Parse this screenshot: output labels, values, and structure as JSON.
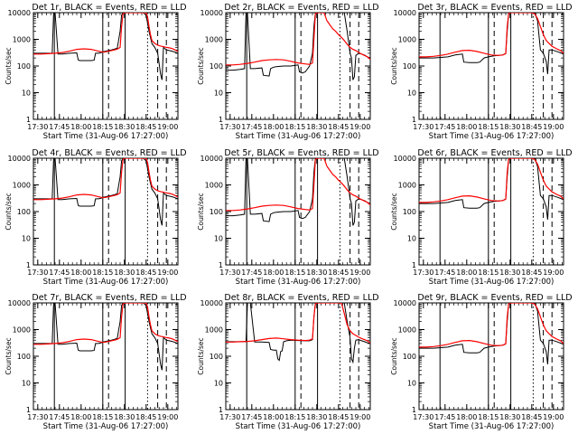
{
  "chart_data": [
    {
      "type": "line",
      "title": "Det 1r, BLACK = Events, RED = LLD",
      "profile": "a"
    },
    {
      "type": "line",
      "title": "Det 2r, BLACK = Events, RED = LLD",
      "profile": "b"
    },
    {
      "type": "line",
      "title": "Det 3r, BLACK = Events, RED = LLD",
      "profile": "c"
    },
    {
      "type": "line",
      "title": "Det 4r, BLACK = Events, RED = LLD",
      "profile": "a"
    },
    {
      "type": "line",
      "title": "Det 5r, BLACK = Events, RED = LLD",
      "profile": "b"
    },
    {
      "type": "line",
      "title": "Det 6r, BLACK = Events, RED = LLD",
      "profile": "c"
    },
    {
      "type": "line",
      "title": "Det 7r, BLACK = Events, RED = LLD",
      "profile": "a"
    },
    {
      "type": "line",
      "title": "Det 8r, BLACK = Events, RED = LLD",
      "profile": "d"
    },
    {
      "type": "line",
      "title": "Det 9r, BLACK = Events, RED = LLD",
      "profile": "c"
    }
  ],
  "shared": {
    "xlabel": "Start Time (31-Aug-06 17:27:00)",
    "ylabel": "Counts/sec",
    "x_ticks": [
      "17:30",
      "17:45",
      "18:00",
      "18:15",
      "18:30",
      "18:45",
      "19:00"
    ],
    "x_tick_minutes": [
      3,
      18,
      33,
      48,
      63,
      78,
      93
    ],
    "xlim_minutes": [
      0,
      100
    ],
    "y_scale": "log",
    "ylim": [
      1,
      10000
    ],
    "y_ticks": [
      "1",
      "10",
      "100",
      "1000",
      "10000"
    ],
    "y_tick_values": [
      1,
      10,
      100,
      1000,
      10000
    ],
    "colors": {
      "events": "#000000",
      "lld": "#ff0000"
    }
  },
  "profiles": {
    "a": {
      "events_minutes": [
        0,
        5,
        10,
        13,
        14,
        15,
        17,
        20,
        25,
        30,
        31,
        32,
        35,
        40,
        42,
        43,
        45,
        47,
        48,
        49,
        50,
        51,
        52,
        54,
        56,
        58,
        60,
        61,
        62,
        63,
        64,
        66,
        68,
        70,
        72,
        74,
        76,
        78,
        80,
        82,
        84,
        86,
        88,
        89,
        90,
        92,
        94,
        96,
        98,
        100
      ],
      "events_counts": [
        300,
        300,
        300,
        300,
        10000,
        10000,
        280,
        280,
        300,
        310,
        170,
        160,
        160,
        160,
        165,
        300,
        300,
        320,
        340,
        350,
        360,
        370,
        380,
        400,
        430,
        460,
        2000,
        8000,
        10000,
        10000,
        10000,
        10000,
        10000,
        10000,
        10000,
        10000,
        10000,
        8000,
        2000,
        700,
        500,
        300,
        50,
        30,
        500,
        400,
        380,
        360,
        330,
        300
      ],
      "lld_minutes": [
        0,
        5,
        10,
        15,
        20,
        25,
        30,
        35,
        40,
        45,
        48,
        50,
        52,
        54,
        56,
        58,
        60,
        61,
        62,
        63,
        66,
        70,
        74,
        78,
        79,
        80,
        81,
        82,
        84,
        86,
        88,
        90,
        92,
        94,
        96,
        98,
        100
      ],
      "lld_counts": [
        280,
        280,
        290,
        300,
        320,
        360,
        420,
        440,
        420,
        360,
        330,
        340,
        360,
        380,
        400,
        430,
        500,
        3000,
        9000,
        10000,
        10000,
        10000,
        10000,
        10000,
        7000,
        3000,
        1500,
        900,
        700,
        600,
        560,
        530,
        500,
        480,
        450,
        400,
        350
      ]
    },
    "b": {
      "events_minutes": [
        0,
        5,
        10,
        13,
        14,
        15,
        17,
        20,
        25,
        26,
        30,
        31,
        33,
        35,
        40,
        45,
        50,
        51,
        53,
        55,
        58,
        60,
        61,
        62,
        64,
        66,
        70,
        74,
        78,
        80,
        82,
        84,
        86,
        87,
        88,
        89,
        90,
        92,
        94,
        96,
        98,
        100
      ],
      "events_counts": [
        70,
        70,
        75,
        80,
        10000,
        10000,
        80,
        80,
        85,
        45,
        42,
        80,
        90,
        95,
        100,
        100,
        110,
        60,
        55,
        60,
        100,
        300,
        3000,
        10000,
        10000,
        10000,
        10000,
        10000,
        10000,
        10000,
        10000,
        2000,
        300,
        200,
        30,
        40,
        250,
        300,
        280,
        260,
        220,
        200
      ],
      "lld_minutes": [
        0,
        5,
        10,
        15,
        20,
        25,
        30,
        35,
        40,
        45,
        50,
        55,
        58,
        60,
        61,
        62,
        63,
        64,
        66,
        68,
        70,
        72,
        74,
        76,
        78,
        80,
        82,
        84,
        86,
        88,
        90,
        92,
        94,
        96,
        98,
        100
      ],
      "lld_counts": [
        110,
        110,
        115,
        125,
        140,
        160,
        170,
        175,
        170,
        150,
        130,
        120,
        115,
        130,
        1000,
        9000,
        10000,
        10000,
        10000,
        10000,
        5000,
        3500,
        2500,
        2000,
        1500,
        1200,
        900,
        650,
        500,
        420,
        380,
        320,
        280,
        250,
        220,
        180
      ]
    },
    "c": {
      "events_minutes": [
        0,
        5,
        10,
        15,
        20,
        25,
        30,
        31,
        35,
        40,
        42,
        45,
        48,
        50,
        52,
        55,
        58,
        60,
        61,
        62,
        63,
        64,
        66,
        70,
        74,
        78,
        80,
        82,
        84,
        86,
        88,
        89,
        90,
        92,
        94,
        96,
        98,
        100
      ],
      "events_counts": [
        200,
        200,
        200,
        210,
        220,
        260,
        280,
        140,
        135,
        135,
        140,
        200,
        220,
        230,
        240,
        250,
        260,
        300,
        2000,
        9000,
        10000,
        10000,
        10000,
        10000,
        10000,
        10000,
        10000,
        5000,
        400,
        300,
        150,
        50,
        400,
        400,
        370,
        340,
        310,
        280
      ],
      "lld_minutes": [
        0,
        5,
        10,
        15,
        20,
        25,
        30,
        35,
        40,
        45,
        50,
        55,
        58,
        60,
        61,
        62,
        63,
        66,
        70,
        74,
        78,
        80,
        82,
        84,
        86,
        88,
        90,
        92,
        94,
        96,
        98,
        100
      ],
      "lld_counts": [
        220,
        220,
        230,
        250,
        280,
        330,
        380,
        390,
        350,
        300,
        260,
        250,
        260,
        290,
        3000,
        9000,
        10000,
        10000,
        10000,
        10000,
        10000,
        9000,
        6000,
        3000,
        1500,
        900,
        700,
        550,
        480,
        420,
        380,
        300
      ]
    },
    "d": {
      "events_minutes": [
        0,
        5,
        10,
        14,
        15,
        17,
        20,
        25,
        30,
        31,
        33,
        35,
        36,
        37,
        38,
        39,
        40,
        42,
        45,
        50,
        55,
        58,
        60,
        61,
        62,
        63,
        64,
        66,
        70,
        74,
        78,
        80,
        82,
        84,
        86,
        87,
        88,
        89,
        90,
        92,
        94,
        96,
        98,
        100
      ],
      "events_counts": [
        350,
        350,
        350,
        350,
        10000,
        10000,
        340,
        340,
        330,
        180,
        170,
        170,
        80,
        70,
        150,
        160,
        350,
        380,
        400,
        390,
        380,
        380,
        420,
        3000,
        10000,
        10000,
        10000,
        10000,
        10000,
        10000,
        10000,
        10000,
        10000,
        2000,
        500,
        80,
        60,
        200,
        400,
        420,
        380,
        350,
        320,
        300
      ],
      "lld_minutes": [
        0,
        5,
        10,
        15,
        20,
        25,
        30,
        35,
        40,
        45,
        50,
        55,
        58,
        60,
        61,
        62,
        63,
        66,
        70,
        74,
        78,
        80,
        82,
        84,
        86,
        88,
        90,
        92,
        94,
        96,
        98,
        100
      ],
      "lld_counts": [
        340,
        340,
        350,
        360,
        380,
        420,
        460,
        480,
        450,
        420,
        400,
        390,
        400,
        450,
        3000,
        9000,
        10000,
        10000,
        10000,
        10000,
        10000,
        10000,
        4000,
        1500,
        900,
        700,
        600,
        520,
        460,
        420,
        380,
        320
      ]
    }
  },
  "vlines": {
    "solid_minutes": [
      14.5,
      48,
      63.5
    ],
    "dashed_minutes": [
      52,
      86,
      92
    ],
    "dotted_minutes": [
      79
    ]
  }
}
